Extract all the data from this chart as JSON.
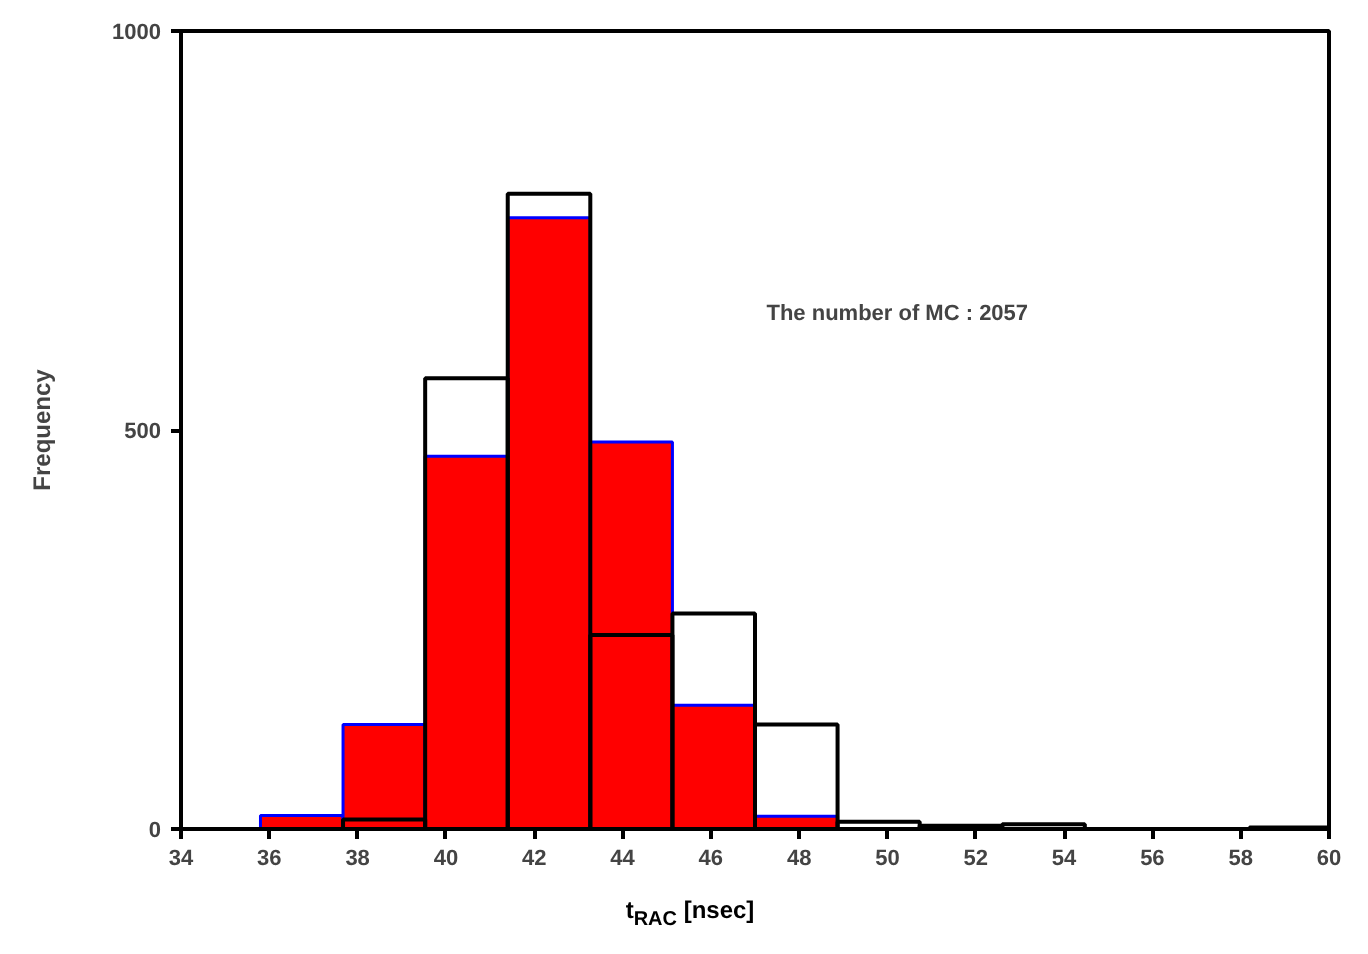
{
  "chart_data": {
    "type": "histogram",
    "bins": [
      35.8,
      37.67,
      39.53,
      41.4,
      43.27,
      45.13,
      47.0,
      48.87,
      50.73,
      52.6,
      54.47,
      58.2,
      60.0
    ],
    "series": [
      {
        "color": "#ff0000",
        "values": [
          17,
          131,
          467,
          766,
          485,
          155,
          16,
          null,
          null,
          null,
          null,
          null
        ]
      },
      {
        "color": "#000000",
        "values": [
          null,
          12,
          565,
          796,
          243,
          270,
          131,
          9,
          4,
          6,
          null,
          2
        ]
      }
    ],
    "xlabel": "t$_{RAC}$ [nsec]",
    "ylabel": "Frequency",
    "xlim": [
      34,
      60
    ],
    "xticks": [
      34,
      36,
      38,
      40,
      42,
      44,
      46,
      48,
      50,
      52,
      54,
      56,
      58,
      60
    ],
    "ylim": [
      0,
      1000
    ],
    "yticks": [
      0,
      500,
      1000
    ],
    "annotations": [
      "The number of MC : 2057"
    ],
    "grid": false
  }
}
